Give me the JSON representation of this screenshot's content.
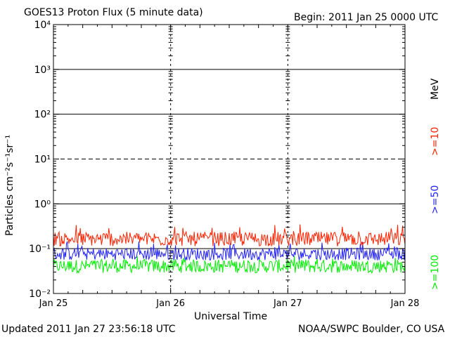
{
  "header": {
    "title": "GOES13 Proton Flux (5 minute data)",
    "begin": "Begin: 2011 Jan 25 0000 UTC"
  },
  "footer": {
    "updated": "Updated 2011 Jan 27 23:56:18 UTC",
    "source": "NOAA/SWPC Boulder, CO USA"
  },
  "legend": {
    "unit": "MeV",
    "items": [
      {
        "label": ">=10",
        "color": "#ff2200"
      },
      {
        "label": ">=50",
        "color": "#2222ff"
      },
      {
        "label": ">=100",
        "color": "#00ee00"
      }
    ]
  },
  "chart_data": {
    "type": "line",
    "title": "GOES13 Proton Flux (5 minute data)",
    "xlabel": "Universal Time",
    "ylabel": "Particles cm⁻²s⁻¹sr⁻¹",
    "yscale": "log",
    "ylim": [
      0.01,
      10000
    ],
    "y_tick_labels": [
      "10⁻²",
      "10⁻¹",
      "10⁰",
      "10¹",
      "10²",
      "10³",
      "10⁴"
    ],
    "y_tick_values": [
      0.01,
      0.1,
      1,
      10,
      100,
      1000,
      10000
    ],
    "x_tick_labels": [
      "Jan 25",
      "Jan 26",
      "Jan 27",
      "Jan 28"
    ],
    "xlim": [
      "2011-01-25 00:00",
      "2011-01-28 00:00"
    ],
    "grid": true,
    "series": [
      {
        "name": ">=10 MeV",
        "color": "#ff2200",
        "typical": 0.15,
        "min": 0.1,
        "max": 0.35
      },
      {
        "name": ">=50 MeV",
        "color": "#2222ff",
        "typical": 0.07,
        "min": 0.05,
        "max": 0.15
      },
      {
        "name": ">=100 MeV",
        "color": "#00ee00",
        "typical": 0.04,
        "min": 0.025,
        "max": 0.07
      }
    ],
    "last_data": "2011-01-27 23:56"
  }
}
